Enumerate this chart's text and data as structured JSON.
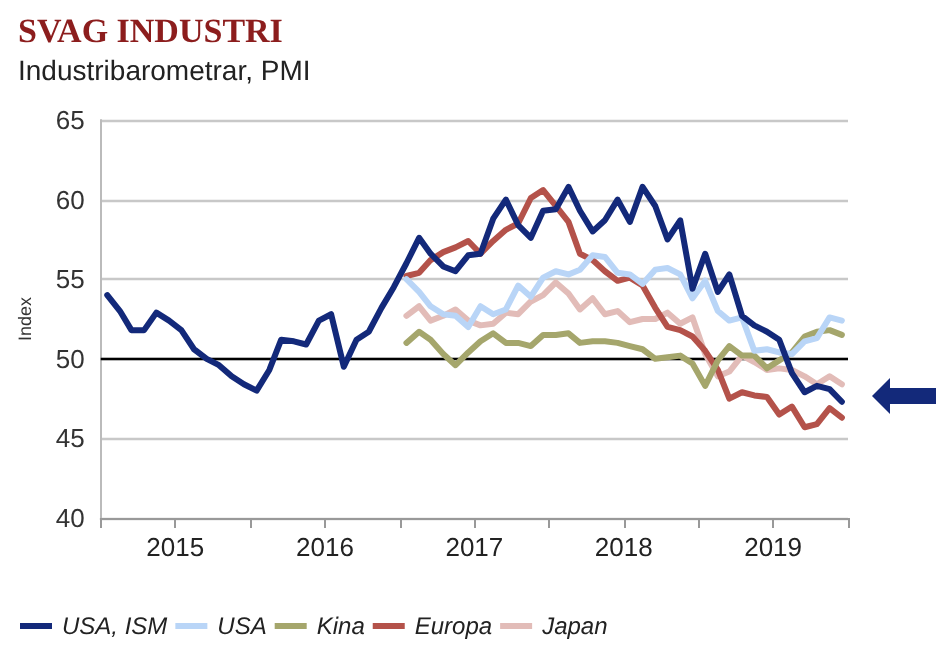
{
  "chart_data": {
    "type": "line",
    "title": "SVAG INDUSTRI",
    "subtitle": "Industribarometrar, PMI",
    "ylabel": "Index",
    "x": [
      "2015-01",
      "2015-02",
      "2015-03",
      "2015-04",
      "2015-05",
      "2015-06",
      "2015-07",
      "2015-08",
      "2015-09",
      "2015-10",
      "2015-11",
      "2015-12",
      "2016-01",
      "2016-02",
      "2016-03",
      "2016-04",
      "2016-05",
      "2016-06",
      "2016-07",
      "2016-08",
      "2016-09",
      "2016-10",
      "2016-11",
      "2016-12",
      "2017-01",
      "2017-02",
      "2017-03",
      "2017-04",
      "2017-05",
      "2017-06",
      "2017-07",
      "2017-08",
      "2017-09",
      "2017-10",
      "2017-11",
      "2017-12",
      "2018-01",
      "2018-02",
      "2018-03",
      "2018-04",
      "2018-05",
      "2018-06",
      "2018-07",
      "2018-08",
      "2018-09",
      "2018-10",
      "2018-11",
      "2018-12",
      "2019-01",
      "2019-02",
      "2019-03",
      "2019-04",
      "2019-05",
      "2019-06",
      "2019-07",
      "2019-08",
      "2019-09",
      "2019-10",
      "2019-11",
      "2019-12"
    ],
    "series": [
      {
        "name": "USA, ISM",
        "color": "#13297a",
        "values": [
          54.0,
          53.0,
          51.8,
          51.8,
          52.9,
          52.4,
          51.8,
          50.6,
          50.0,
          49.6,
          48.9,
          48.4,
          48.0,
          49.3,
          51.2,
          51.1,
          50.9,
          52.4,
          52.8,
          49.5,
          51.2,
          51.7,
          53.2,
          54.5,
          56.0,
          57.6,
          56.6,
          55.8,
          55.5,
          56.5,
          56.6,
          58.8,
          60.0,
          58.4,
          57.6,
          59.3,
          59.4,
          60.8,
          59.3,
          58.0,
          58.7,
          60.0,
          58.6,
          60.8,
          59.6,
          57.5,
          58.7,
          54.4,
          56.6,
          54.2,
          55.3,
          52.7,
          52.1,
          51.7,
          51.2,
          49.1,
          47.9,
          48.3,
          48.1,
          47.3
        ]
      },
      {
        "name": "USA",
        "color": "#b9d5f7",
        "x": [
          "2017-01",
          "2017-02",
          "2017-03",
          "2017-04",
          "2017-05",
          "2017-06",
          "2017-07",
          "2017-08",
          "2017-09",
          "2017-10",
          "2017-11",
          "2017-12",
          "2018-01",
          "2018-02",
          "2018-03",
          "2018-04",
          "2018-05",
          "2018-06",
          "2018-07",
          "2018-08",
          "2018-09",
          "2018-10",
          "2018-11",
          "2018-12",
          "2019-01",
          "2019-02",
          "2019-03",
          "2019-04",
          "2019-05",
          "2019-06",
          "2019-07",
          "2019-08",
          "2019-09",
          "2019-10",
          "2019-11",
          "2019-12"
        ],
        "values": [
          55.0,
          54.2,
          53.3,
          52.8,
          52.7,
          52.0,
          53.3,
          52.8,
          53.1,
          54.6,
          53.9,
          55.1,
          55.5,
          55.3,
          55.6,
          56.5,
          56.4,
          55.4,
          55.3,
          54.7,
          55.6,
          55.7,
          55.3,
          53.8,
          54.9,
          53.0,
          52.4,
          52.6,
          50.5,
          50.6,
          50.4,
          50.3,
          51.1,
          51.3,
          52.6,
          52.4
        ]
      },
      {
        "name": "Kina",
        "color": "#a5a66c",
        "x": [
          "2017-01",
          "2017-02",
          "2017-03",
          "2017-04",
          "2017-05",
          "2017-06",
          "2017-07",
          "2017-08",
          "2017-09",
          "2017-10",
          "2017-11",
          "2017-12",
          "2018-01",
          "2018-02",
          "2018-03",
          "2018-04",
          "2018-05",
          "2018-06",
          "2018-07",
          "2018-08",
          "2018-09",
          "2018-10",
          "2018-11",
          "2018-12",
          "2019-01",
          "2019-02",
          "2019-03",
          "2019-04",
          "2019-05",
          "2019-06",
          "2019-07",
          "2019-08",
          "2019-09",
          "2019-10",
          "2019-11",
          "2019-12"
        ],
        "values": [
          51.0,
          51.7,
          51.2,
          50.3,
          49.6,
          50.4,
          51.1,
          51.6,
          51.0,
          51.0,
          50.8,
          51.5,
          51.5,
          51.6,
          51.0,
          51.1,
          51.1,
          51.0,
          50.8,
          50.6,
          50.0,
          50.1,
          50.2,
          49.7,
          48.3,
          49.9,
          50.8,
          50.2,
          50.2,
          49.4,
          49.9,
          50.4,
          51.4,
          51.7,
          51.8,
          51.5
        ]
      },
      {
        "name": "Europa",
        "color": "#b4524a",
        "x": [
          "2017-01",
          "2017-02",
          "2017-03",
          "2017-04",
          "2017-05",
          "2017-06",
          "2017-07",
          "2017-08",
          "2017-09",
          "2017-10",
          "2017-11",
          "2017-12",
          "2018-01",
          "2018-02",
          "2018-03",
          "2018-04",
          "2018-05",
          "2018-06",
          "2018-07",
          "2018-08",
          "2018-09",
          "2018-10",
          "2018-11",
          "2018-12",
          "2019-01",
          "2019-02",
          "2019-03",
          "2019-04",
          "2019-05",
          "2019-06",
          "2019-07",
          "2019-08",
          "2019-09",
          "2019-10",
          "2019-11",
          "2019-12"
        ],
        "values": [
          55.2,
          55.4,
          56.2,
          56.7,
          57.0,
          57.4,
          56.6,
          57.4,
          58.1,
          58.5,
          60.1,
          60.6,
          59.6,
          58.6,
          56.6,
          56.2,
          55.5,
          54.9,
          55.1,
          54.6,
          53.2,
          52.0,
          51.8,
          51.4,
          50.5,
          49.3,
          47.5,
          47.9,
          47.7,
          47.6,
          46.5,
          47.0,
          45.7,
          45.9,
          46.9,
          46.3
        ]
      },
      {
        "name": "Japan",
        "color": "#e2bcb8",
        "x": [
          "2017-01",
          "2017-02",
          "2017-03",
          "2017-04",
          "2017-05",
          "2017-06",
          "2017-07",
          "2017-08",
          "2017-09",
          "2017-10",
          "2017-11",
          "2017-12",
          "2018-01",
          "2018-02",
          "2018-03",
          "2018-04",
          "2018-05",
          "2018-06",
          "2018-07",
          "2018-08",
          "2018-09",
          "2018-10",
          "2018-11",
          "2018-12",
          "2019-01",
          "2019-02",
          "2019-03",
          "2019-04",
          "2019-05",
          "2019-06",
          "2019-07",
          "2019-08",
          "2019-09",
          "2019-10",
          "2019-11",
          "2019-12"
        ],
        "values": [
          52.7,
          53.3,
          52.4,
          52.7,
          53.1,
          52.4,
          52.1,
          52.2,
          52.9,
          52.8,
          53.6,
          54.0,
          54.8,
          54.1,
          53.1,
          53.8,
          52.8,
          53.0,
          52.3,
          52.5,
          52.5,
          52.9,
          52.2,
          52.6,
          50.3,
          48.9,
          49.2,
          50.2,
          49.8,
          49.3,
          49.4,
          49.3,
          48.9,
          48.4,
          48.9,
          48.4
        ]
      }
    ],
    "xlim": [
      "2014-12-16",
      "2019-12-16"
    ],
    "xticks": [
      {
        "value": "2014-12-16",
        "label": null
      },
      {
        "value": "2015-06-16",
        "label": "2015"
      },
      {
        "value": "2015-12-16",
        "label": null
      },
      {
        "value": "2016-06-16",
        "label": "2016"
      },
      {
        "value": "2016-12-16",
        "label": null
      },
      {
        "value": "2017-06-16",
        "label": "2017"
      },
      {
        "value": "2017-12-16",
        "label": null
      },
      {
        "value": "2018-06-16",
        "label": "2018"
      },
      {
        "value": "2018-12-16",
        "label": null
      },
      {
        "value": "2019-06-16",
        "label": "2019"
      },
      {
        "value": "2019-12-16",
        "label": null
      }
    ],
    "ylim": [
      40,
      65
    ],
    "yticks": [
      40,
      45,
      50,
      55,
      60,
      65
    ],
    "ref_lines": [
      {
        "axis": "y",
        "value": 50,
        "color": "#000000"
      }
    ],
    "grid": "y",
    "legend": "bottom",
    "marker": "none",
    "line_style": "solid"
  }
}
